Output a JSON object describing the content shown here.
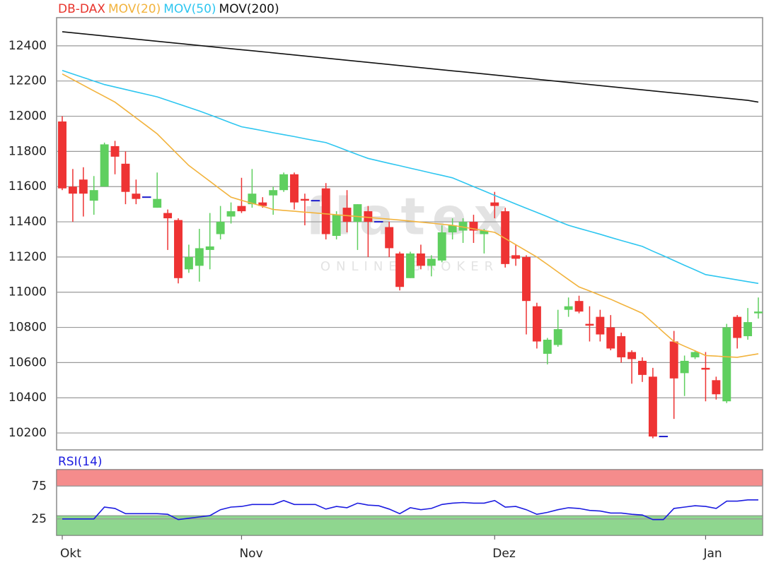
{
  "chart_data": [
    {
      "type": "candlestick",
      "watermark": "flatex",
      "watermark_sub": "ONLINE BROKER",
      "categories": [
        "Okt",
        null,
        null,
        null,
        null,
        null,
        null,
        null,
        null,
        null,
        null,
        null,
        null,
        null,
        null,
        null,
        null,
        "Nov",
        null,
        null,
        null,
        null,
        null,
        null,
        null,
        null,
        null,
        null,
        null,
        null,
        null,
        null,
        null,
        null,
        null,
        null,
        null,
        null,
        null,
        null,
        null,
        "Dez",
        null,
        null,
        null,
        null,
        null,
        null,
        null,
        null,
        null,
        null,
        null,
        null,
        null,
        null,
        null,
        null,
        null,
        null,
        null,
        "Jan",
        null,
        null,
        null,
        null,
        null
      ],
      "ylim": [
        10104,
        12560
      ],
      "yticks": [
        10200,
        10400,
        10600,
        10800,
        11000,
        11200,
        11400,
        11600,
        11800,
        12000,
        12200,
        12400
      ],
      "grid": true,
      "series": [
        {
          "name": "DB-DAX",
          "type": "candlestick",
          "color": "#e8342c",
          "up_color": "#5fcf5f",
          "down_color": "#ee3333",
          "doji_color": "#1c1ccc",
          "open": [
            11970,
            11600,
            11640,
            11520,
            11600,
            11830,
            11730,
            11560,
            11540,
            11480,
            11450,
            11410,
            11130,
            11150,
            11240,
            11330,
            11430,
            11490,
            11500,
            11510,
            11550,
            11580,
            11670,
            11530,
            11520,
            11590,
            11320,
            11480,
            11400,
            11460,
            11400,
            11370,
            11220,
            11080,
            11220,
            11150,
            11180,
            11340,
            11350,
            11400,
            11330,
            11510,
            11460,
            11210,
            11200,
            10920,
            10650,
            10700,
            10900,
            10950,
            10820,
            10860,
            10800,
            10750,
            10660,
            10610,
            10520,
            10180,
            10720,
            10540,
            10630,
            10570,
            10500,
            10380,
            10860,
            10750,
            10880
          ],
          "high": [
            12000,
            11700,
            11710,
            11660,
            11850,
            11860,
            11800,
            11640,
            11540,
            11680,
            11470,
            11420,
            11270,
            11360,
            11450,
            11490,
            11510,
            11650,
            11700,
            11540,
            11600,
            11680,
            11680,
            11560,
            11520,
            11620,
            11460,
            11580,
            11500,
            11490,
            11400,
            11400,
            11230,
            11230,
            11270,
            11210,
            11380,
            11420,
            11420,
            11440,
            11360,
            11570,
            11480,
            11270,
            11210,
            10940,
            10740,
            10900,
            10970,
            10980,
            10920,
            10900,
            10870,
            10770,
            10670,
            10630,
            10570,
            10180,
            10780,
            10640,
            10670,
            10660,
            10520,
            10820,
            10870,
            10910,
            10970
          ],
          "low": [
            11580,
            11400,
            11430,
            11440,
            11600,
            11670,
            11500,
            11500,
            11540,
            11480,
            11240,
            11050,
            11110,
            11060,
            11130,
            11300,
            11390,
            11450,
            11480,
            11480,
            11440,
            11570,
            11470,
            11380,
            11520,
            11300,
            11300,
            11340,
            11240,
            11200,
            11400,
            11200,
            11010,
            11080,
            11130,
            11090,
            11170,
            11300,
            11280,
            11280,
            11220,
            11420,
            11140,
            11150,
            10760,
            10680,
            10590,
            10690,
            10860,
            10880,
            10720,
            10720,
            10670,
            10600,
            10480,
            10490,
            10170,
            10180,
            10280,
            10410,
            10620,
            10380,
            10390,
            10370,
            10680,
            10730,
            10850
          ],
          "close": [
            11590,
            11560,
            11560,
            11580,
            11840,
            11770,
            11570,
            11530,
            11540,
            11530,
            11420,
            11080,
            11200,
            11250,
            11260,
            11400,
            11460,
            11460,
            11560,
            11490,
            11580,
            11670,
            11510,
            11520,
            11520,
            11330,
            11440,
            11400,
            11500,
            11400,
            11400,
            11250,
            11030,
            11220,
            11150,
            11190,
            11340,
            11380,
            11400,
            11350,
            11350,
            11490,
            11160,
            11190,
            10950,
            10720,
            10730,
            10790,
            10920,
            10890,
            10810,
            10760,
            10680,
            10630,
            10620,
            10530,
            10180,
            10180,
            10510,
            10610,
            10660,
            10560,
            10420,
            10800,
            10740,
            10830,
            10890
          ]
        },
        {
          "name": "MOV(20)",
          "type": "line",
          "color": "#f2b33d",
          "values": [
            12240,
            12208,
            12176,
            12144,
            12112,
            12080,
            12035,
            11990,
            11945,
            11900,
            11840,
            11780,
            11720,
            11675,
            11630,
            11585,
            11540,
            11522,
            11505,
            11488,
            11470,
            11465,
            11460,
            11455,
            11450,
            11445,
            11440,
            11435,
            11430,
            11425,
            11420,
            11415,
            11410,
            11404,
            11398,
            11392,
            11386,
            11380,
            11370,
            11360,
            11350,
            11340,
            11305,
            11270,
            11235,
            11200,
            11158,
            11115,
            11072,
            11030,
            11007,
            10983,
            10960,
            10933,
            10907,
            10880,
            10827,
            10773,
            10720,
            10693,
            10667,
            10640,
            10637,
            10633,
            10630,
            10640,
            10650
          ]
        },
        {
          "name": "MOV(50)",
          "type": "line",
          "color": "#2ec6f0",
          "values": [
            12260,
            12240,
            12220,
            12200,
            12180,
            12166,
            12152,
            12138,
            12124,
            12110,
            12090,
            12070,
            12050,
            12030,
            12008,
            11985,
            11962,
            11940,
            11929,
            11918,
            11906,
            11895,
            11884,
            11872,
            11861,
            11850,
            11828,
            11805,
            11782,
            11760,
            11746,
            11732,
            11719,
            11705,
            11691,
            11677,
            11664,
            11650,
            11625,
            11600,
            11575,
            11550,
            11526,
            11501,
            11477,
            11453,
            11429,
            11404,
            11380,
            11363,
            11346,
            11329,
            11311,
            11294,
            11277,
            11260,
            11233,
            11207,
            11180,
            11153,
            11127,
            11100,
            11090,
            11080,
            11070,
            11060,
            11050
          ]
        },
        {
          "name": "MOV(200)",
          "type": "line",
          "color": "#111111",
          "values": [
            12480,
            12474,
            12468,
            12462,
            12456,
            12450,
            12444,
            12438,
            12432,
            12426,
            12420,
            12414,
            12408,
            12402,
            12396,
            12390,
            12384,
            12378,
            12372,
            12366,
            12360,
            12354,
            12348,
            12342,
            12336,
            12330,
            12324,
            12318,
            12312,
            12306,
            12300,
            12294,
            12288,
            12282,
            12276,
            12270,
            12264,
            12258,
            12252,
            12246,
            12240,
            12234,
            12228,
            12222,
            12216,
            12210,
            12204,
            12198,
            12192,
            12186,
            12180,
            12174,
            12168,
            12162,
            12156,
            12150,
            12144,
            12138,
            12132,
            12126,
            12120,
            12114,
            12108,
            12102,
            12096,
            12090,
            12080
          ]
        }
      ]
    },
    {
      "type": "line",
      "title": "RSI(14)",
      "ylim": [
        0,
        100
      ],
      "yticks": [
        25,
        75
      ],
      "grid": true,
      "zones": [
        {
          "from": 75,
          "to": 100,
          "color": "#f58c8c"
        },
        {
          "from": 0,
          "to": 30,
          "color": "#8fd68f"
        }
      ],
      "series": [
        {
          "color": "#1c1ce0",
          "values": [
            25,
            25,
            25,
            25,
            43,
            41,
            33,
            33,
            33,
            33,
            32,
            24,
            26,
            28,
            30,
            39,
            43,
            44,
            47,
            47,
            47,
            53,
            47,
            47,
            47,
            40,
            44,
            42,
            49,
            46,
            45,
            40,
            33,
            42,
            39,
            41,
            47,
            49,
            50,
            49,
            49,
            53,
            43,
            44,
            39,
            32,
            35,
            39,
            42,
            41,
            38,
            37,
            34,
            34,
            32,
            31,
            24,
            24,
            41,
            43,
            45,
            44,
            41,
            52,
            52,
            54,
            54
          ]
        }
      ]
    }
  ]
}
